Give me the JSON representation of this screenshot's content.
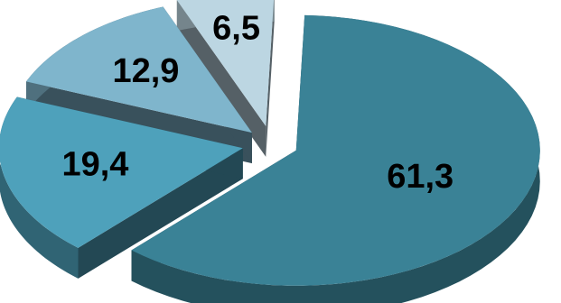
{
  "chart_data": {
    "type": "pie",
    "title": "",
    "values": [
      61.3,
      19.4,
      12.9,
      6.5
    ],
    "labels": [
      "61,3",
      "19,4",
      "12,9",
      "6,5"
    ],
    "colors": [
      "#3a8296",
      "#4ea1bb",
      "#7fb5cc",
      "#bcd6e2"
    ],
    "exploded": true,
    "style": "3d",
    "legend": "none"
  }
}
